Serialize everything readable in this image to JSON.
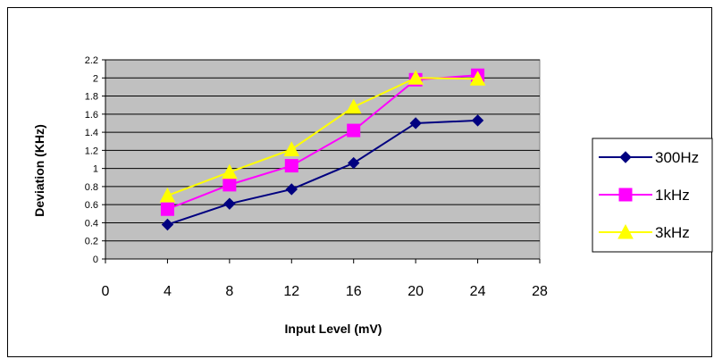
{
  "chart_data": {
    "type": "line",
    "title": "",
    "xlabel": "Input Level (mV)",
    "ylabel": "Deviation (KHz)",
    "x": [
      4,
      8,
      12,
      16,
      20,
      24
    ],
    "xlim": [
      0,
      28
    ],
    "xticks": [
      "0",
      "4",
      "8",
      "12",
      "16",
      "20",
      "24",
      "28"
    ],
    "ylim": [
      0,
      2.2
    ],
    "yticks": [
      "0",
      "0.2",
      "0.4",
      "0.6",
      "0.8",
      "1",
      "1.2",
      "1.4",
      "1.6",
      "1.8",
      "2",
      "2.2"
    ],
    "grid": true,
    "legend_position": "right",
    "plot_background": "#c0c0c0",
    "series": [
      {
        "name": "300Hz",
        "color": "#000080",
        "marker": "diamond",
        "values": [
          0.38,
          0.61,
          0.77,
          1.06,
          1.5,
          1.53
        ]
      },
      {
        "name": "1kHz",
        "color": "#ff00ff",
        "marker": "square",
        "values": [
          0.55,
          0.82,
          1.03,
          1.42,
          1.98,
          2.03
        ]
      },
      {
        "name": "3kHz",
        "color": "#ffff00",
        "marker": "triangle",
        "values": [
          0.7,
          0.96,
          1.21,
          1.68,
          2.0,
          1.99
        ]
      }
    ]
  }
}
